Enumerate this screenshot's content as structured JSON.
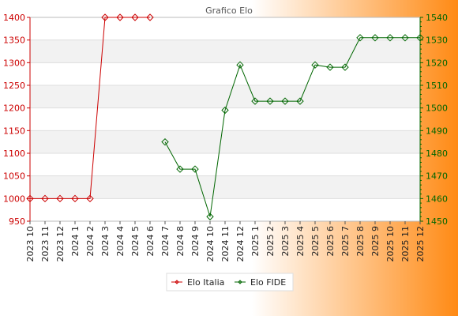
{
  "chart_data": {
    "type": "line",
    "title": "Grafico Elo",
    "x": [
      "2023 10",
      "2023 11",
      "2023 12",
      "2024 1",
      "2024 2",
      "2024 3",
      "2024 4",
      "2024 5",
      "2024 6",
      "2024 7",
      "2024 8",
      "2024 9",
      "2024 10",
      "2024 11",
      "2024 12",
      "2025 1",
      "2025 2",
      "2025 3",
      "2025 4",
      "2025 5",
      "2025 6",
      "2025 7",
      "2025 8",
      "2025 9",
      "2025 10",
      "2025 11",
      "2025 12"
    ],
    "left_axis": {
      "range": [
        950,
        1400
      ],
      "ticks": [
        950,
        1000,
        1050,
        1100,
        1150,
        1200,
        1250,
        1300,
        1350,
        1400
      ],
      "color": "#cc0000"
    },
    "right_axis": {
      "range": [
        1450,
        1540
      ],
      "ticks": [
        1450,
        1460,
        1470,
        1480,
        1490,
        1500,
        1510,
        1520,
        1530,
        1540
      ],
      "color": "#006600"
    },
    "series": [
      {
        "name": "Elo Italia",
        "axis": "left",
        "color": "#cc0000",
        "values": [
          1000,
          1000,
          1000,
          1000,
          1000,
          1400,
          1400,
          1400,
          1400,
          null,
          null,
          null,
          null,
          null,
          null,
          null,
          null,
          null,
          null,
          null,
          null,
          null,
          null,
          null,
          null,
          null,
          null
        ]
      },
      {
        "name": "Elo FIDE",
        "axis": "right",
        "color": "#006600",
        "values": [
          null,
          null,
          null,
          null,
          null,
          null,
          null,
          null,
          null,
          1485,
          1473,
          1473,
          1452,
          1499,
          1519,
          1503,
          1503,
          1503,
          1503,
          1519,
          1518,
          1518,
          1531,
          1531,
          1531,
          1531,
          1531
        ]
      }
    ],
    "grid": true,
    "legend_position": "bottom-center"
  }
}
